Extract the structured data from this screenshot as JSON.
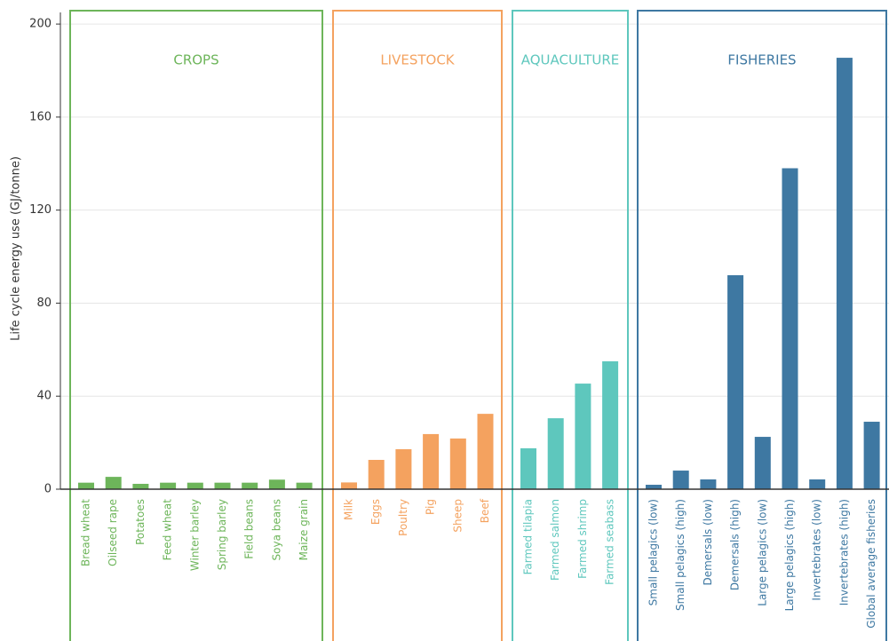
{
  "chart_data": {
    "type": "bar",
    "y_label": "Life cycle energy use (GJ/tonne)",
    "ylim": [
      0,
      205
    ],
    "yticks": [
      0,
      40,
      80,
      120,
      160,
      200
    ],
    "grid": true,
    "groups": [
      {
        "name": "CROPS",
        "color": "#6db55a",
        "categories": [
          "Bread wheat",
          "Oilseed rape",
          "Potatoes",
          "Feed wheat",
          "Winter barley",
          "Spring barley",
          "Field beans",
          "Soya beans",
          "Maize grain"
        ],
        "values": [
          2.8,
          5.3,
          2.3,
          2.8,
          2.8,
          2.8,
          2.8,
          4.1,
          2.8
        ]
      },
      {
        "name": "LIVESTOCK",
        "color": "#f4a25f",
        "categories": [
          "Milk",
          "Eggs",
          "Poultry",
          "Pig",
          "Sheep",
          "Beef"
        ],
        "values": [
          2.9,
          12.6,
          17.2,
          23.7,
          21.8,
          32.4
        ]
      },
      {
        "name": "AQUACULTURE",
        "color": "#5ec7bd",
        "categories": [
          "Farmed tilapia",
          "Farmed salmon",
          "Farmed shrimp",
          "Farmed seabass"
        ],
        "values": [
          17.6,
          30.5,
          45.4,
          55
        ]
      },
      {
        "name": "FISHERIES",
        "color": "#3e78a2",
        "categories": [
          "Small pelagics (low)",
          "Small pelagics (high)",
          "Demersals (low)",
          "Demersals (high)",
          "Large pelagics (low)",
          "Large pelagics (high)",
          "Invertebrates (low)",
          "Invertebrates (high)",
          "Global average fisheries"
        ],
        "values": [
          1.9,
          8,
          4.2,
          92,
          22.5,
          138,
          4.2,
          185.5,
          29
        ]
      }
    ]
  }
}
